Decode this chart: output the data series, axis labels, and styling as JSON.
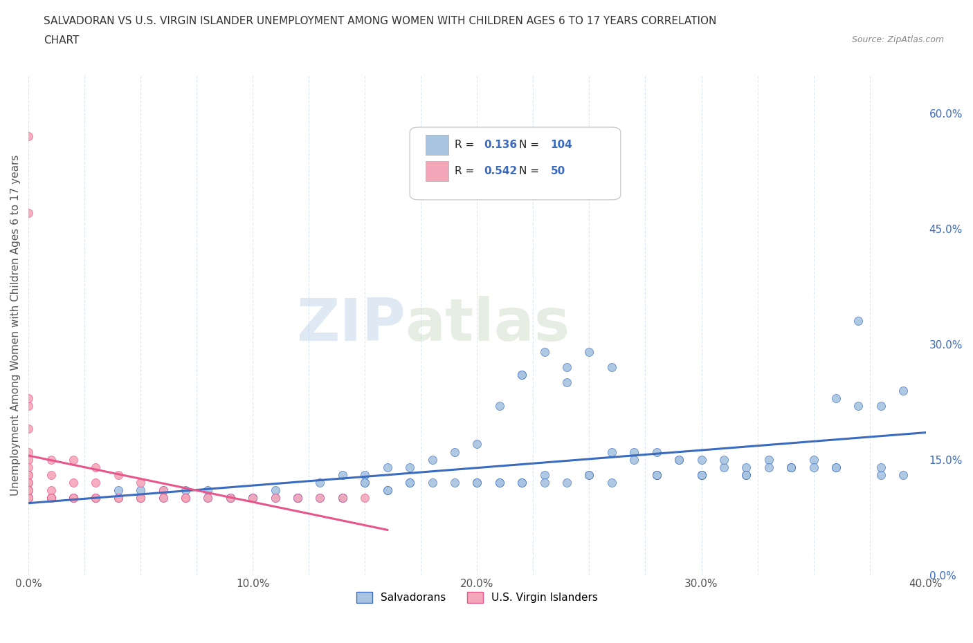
{
  "title_line1": "SALVADORAN VS U.S. VIRGIN ISLANDER UNEMPLOYMENT AMONG WOMEN WITH CHILDREN AGES 6 TO 17 YEARS CORRELATION",
  "title_line2": "CHART",
  "source_text": "Source: ZipAtlas.com",
  "ylabel": "Unemployment Among Women with Children Ages 6 to 17 years",
  "xlim": [
    0.0,
    0.4
  ],
  "ylim": [
    0.0,
    0.65
  ],
  "ytick_positions": [
    0.0,
    0.15,
    0.3,
    0.45,
    0.6
  ],
  "ytick_labels": [
    "0.0%",
    "15.0%",
    "30.0%",
    "45.0%",
    "60.0%"
  ],
  "watermark_zip": "ZIP",
  "watermark_atlas": "atlas",
  "legend_R1": "0.136",
  "legend_N1": "104",
  "legend_R2": "0.542",
  "legend_N2": "50",
  "salvadoran_color": "#a8c4e0",
  "virgin_islander_color": "#f4a7b9",
  "trendline_salvadoran_color": "#3a6bbf",
  "trendline_virgin_islander_color": "#e8558a",
  "background_color": "#ffffff",
  "grid_color": "#dce8f5",
  "title_color": "#333333",
  "label_color": "#555555",
  "salvadoran_x": [
    0.0,
    0.0,
    0.0,
    0.01,
    0.01,
    0.02,
    0.02,
    0.03,
    0.03,
    0.04,
    0.04,
    0.05,
    0.05,
    0.06,
    0.06,
    0.07,
    0.07,
    0.08,
    0.08,
    0.09,
    0.09,
    0.1,
    0.1,
    0.11,
    0.11,
    0.12,
    0.12,
    0.13,
    0.13,
    0.14,
    0.14,
    0.15,
    0.15,
    0.16,
    0.16,
    0.17,
    0.17,
    0.18,
    0.19,
    0.2,
    0.21,
    0.21,
    0.22,
    0.22,
    0.23,
    0.23,
    0.24,
    0.25,
    0.25,
    0.26,
    0.27,
    0.28,
    0.28,
    0.29,
    0.3,
    0.3,
    0.31,
    0.32,
    0.33,
    0.34,
    0.35,
    0.36,
    0.37,
    0.38,
    0.39,
    0.2,
    0.22,
    0.24,
    0.26,
    0.28,
    0.3,
    0.32,
    0.34,
    0.36,
    0.38,
    0.15,
    0.17,
    0.19,
    0.21,
    0.23,
    0.25,
    0.27,
    0.29,
    0.31,
    0.33,
    0.35,
    0.37,
    0.39,
    0.1,
    0.12,
    0.14,
    0.16,
    0.18,
    0.2,
    0.22,
    0.24,
    0.26,
    0.28,
    0.3,
    0.32,
    0.34,
    0.36,
    0.38
  ],
  "salvadoran_y": [
    0.1,
    0.1,
    0.11,
    0.1,
    0.1,
    0.1,
    0.1,
    0.1,
    0.1,
    0.1,
    0.11,
    0.11,
    0.1,
    0.11,
    0.1,
    0.11,
    0.1,
    0.11,
    0.1,
    0.1,
    0.1,
    0.1,
    0.1,
    0.11,
    0.1,
    0.1,
    0.1,
    0.12,
    0.1,
    0.13,
    0.1,
    0.13,
    0.12,
    0.14,
    0.11,
    0.14,
    0.12,
    0.15,
    0.16,
    0.17,
    0.22,
    0.12,
    0.26,
    0.12,
    0.29,
    0.13,
    0.27,
    0.29,
    0.13,
    0.27,
    0.16,
    0.16,
    0.13,
    0.15,
    0.15,
    0.13,
    0.14,
    0.14,
    0.15,
    0.14,
    0.15,
    0.23,
    0.33,
    0.22,
    0.24,
    0.12,
    0.26,
    0.25,
    0.16,
    0.13,
    0.13,
    0.13,
    0.14,
    0.14,
    0.13,
    0.12,
    0.12,
    0.12,
    0.12,
    0.12,
    0.13,
    0.15,
    0.15,
    0.15,
    0.14,
    0.14,
    0.22,
    0.13,
    0.1,
    0.1,
    0.1,
    0.11,
    0.12,
    0.12,
    0.12,
    0.12,
    0.12,
    0.13,
    0.13,
    0.13,
    0.14,
    0.14,
    0.14
  ],
  "virgin_x": [
    0.0,
    0.0,
    0.0,
    0.0,
    0.0,
    0.0,
    0.0,
    0.0,
    0.0,
    0.0,
    0.0,
    0.0,
    0.0,
    0.01,
    0.01,
    0.01,
    0.01,
    0.01,
    0.02,
    0.02,
    0.02,
    0.03,
    0.03,
    0.03,
    0.04,
    0.04,
    0.05,
    0.05,
    0.06,
    0.06,
    0.07,
    0.07,
    0.08,
    0.09,
    0.1,
    0.11,
    0.12,
    0.13,
    0.14,
    0.15,
    0.0,
    0.0,
    0.0,
    0.0,
    0.0,
    0.01,
    0.02,
    0.03,
    0.04,
    0.05
  ],
  "virgin_y": [
    0.57,
    0.47,
    0.22,
    0.19,
    0.15,
    0.14,
    0.13,
    0.12,
    0.11,
    0.1,
    0.1,
    0.1,
    0.1,
    0.15,
    0.13,
    0.11,
    0.1,
    0.1,
    0.15,
    0.12,
    0.1,
    0.14,
    0.12,
    0.1,
    0.13,
    0.1,
    0.12,
    0.1,
    0.11,
    0.1,
    0.1,
    0.1,
    0.1,
    0.1,
    0.1,
    0.1,
    0.1,
    0.1,
    0.1,
    0.1,
    0.23,
    0.16,
    0.13,
    0.12,
    0.11,
    0.1,
    0.1,
    0.1,
    0.1,
    0.1
  ]
}
